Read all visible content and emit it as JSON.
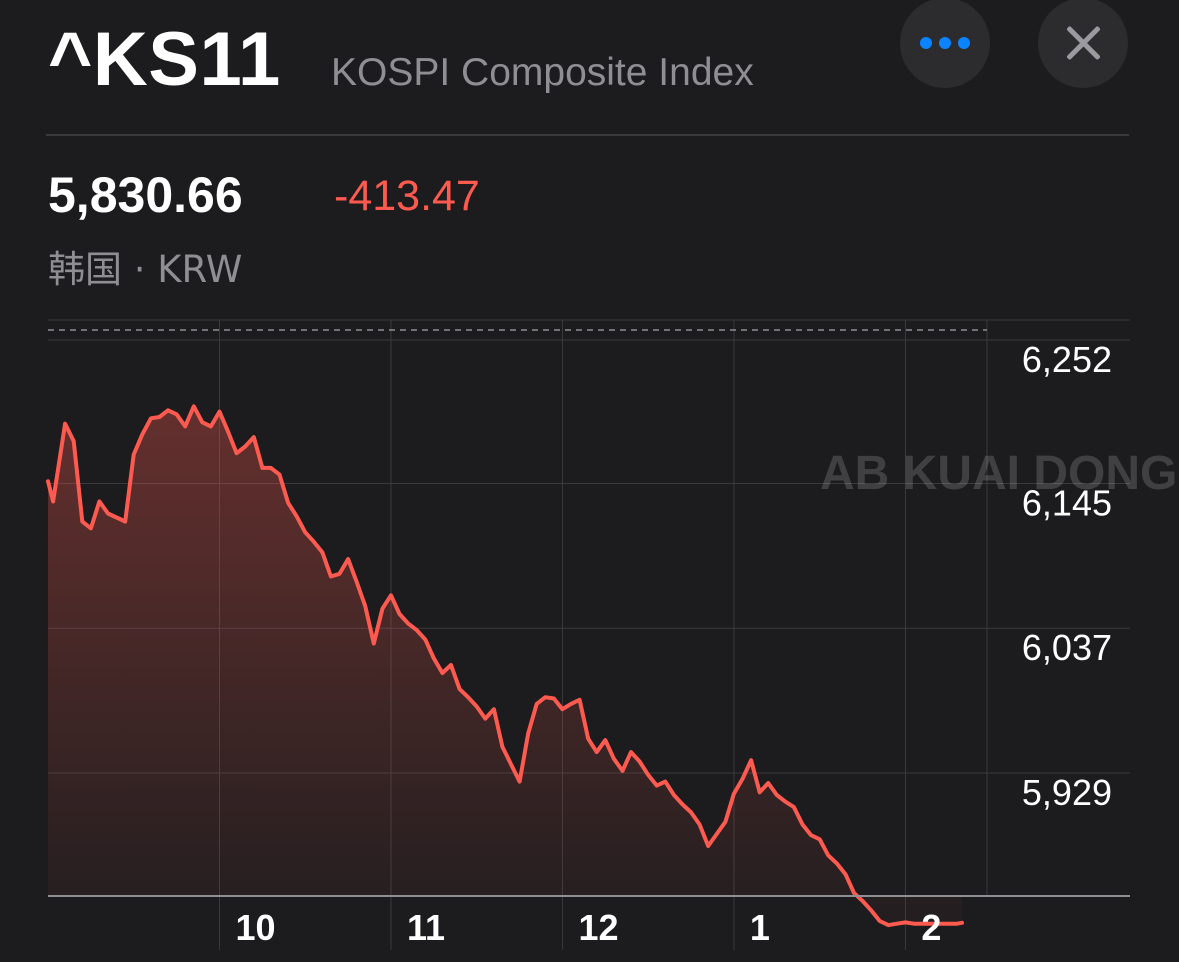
{
  "header": {
    "symbol": "^KS11",
    "company": "KOSPI Composite Index",
    "more_icon": "ellipsis-icon",
    "close_icon": "close-icon"
  },
  "quote": {
    "price": "5,830.66",
    "change": "-413.47",
    "meta": "韩国 · KRW"
  },
  "colors": {
    "background": "#1c1c1e",
    "line": "#ff5a4f",
    "change_negative": "#ff5a4f",
    "accent_blue": "#0a84ff",
    "secondary_text": "#8e8e93"
  },
  "watermark": "AB KUAI DONG",
  "chart_data": {
    "type": "area",
    "y_tick_labels": [
      "6,252",
      "6,145",
      "6,037",
      "5,929"
    ],
    "y_ticks": [
      6252,
      6145,
      6037,
      5929
    ],
    "x_tick_labels": [
      "10",
      "11",
      "12",
      "1",
      "2"
    ],
    "x_ticks": [
      1,
      2,
      3,
      4,
      5
    ],
    "ylim": [
      5820,
      6252
    ],
    "xlim": [
      0,
      5.33
    ],
    "previous_close": 6244.13,
    "grid": true,
    "series": [
      {
        "x": [
          0,
          0.03,
          0.1,
          0.15,
          0.2,
          0.25,
          0.3,
          0.35,
          0.4,
          0.45,
          0.5,
          0.55,
          0.6,
          0.65,
          0.7,
          0.75,
          0.8,
          0.85,
          0.9,
          0.95,
          1.0,
          1.05,
          1.1,
          1.15,
          1.2,
          1.25,
          1.3,
          1.35,
          1.4,
          1.45,
          1.5,
          1.55,
          1.6,
          1.65,
          1.7,
          1.75,
          1.8,
          1.85,
          1.9,
          1.95,
          2.0,
          2.05,
          2.1,
          2.15,
          2.2,
          2.25,
          2.3,
          2.35,
          2.4,
          2.45,
          2.5,
          2.55,
          2.6,
          2.65,
          2.7,
          2.75,
          2.8,
          2.85,
          2.9,
          2.95,
          3.0,
          3.05,
          3.1,
          3.15,
          3.2,
          3.25,
          3.3,
          3.35,
          3.4,
          3.45,
          3.5,
          3.55,
          3.6,
          3.65,
          3.7,
          3.75,
          3.8,
          3.85,
          3.9,
          3.95,
          4.0,
          4.05,
          4.1,
          4.15,
          4.2,
          4.25,
          4.3,
          4.35,
          4.4,
          4.45,
          4.5,
          4.55,
          4.6,
          4.65,
          4.7,
          4.75,
          4.8,
          4.85,
          4.9,
          4.95,
          5.0,
          5.05,
          5.1,
          5.15,
          5.2,
          5.25,
          5.3,
          5.33
        ],
        "y": [
          6160,
          6145,
          6203,
          6190,
          6130,
          6125,
          6145,
          6136,
          6133,
          6130,
          6180,
          6195,
          6207,
          6208,
          6213,
          6210,
          6201,
          6216,
          6204,
          6201,
          6212,
          6197,
          6181,
          6186,
          6193,
          6170,
          6170,
          6165,
          6144,
          6134,
          6122,
          6115,
          6107,
          6089,
          6091,
          6102,
          6085,
          6067,
          6039,
          6065,
          6075,
          6061,
          6054,
          6049,
          6042,
          6028,
          6017,
          6023,
          6005,
          5999,
          5992,
          5983,
          5990,
          5962,
          5949,
          5936,
          5972,
          5994,
          5999,
          5998,
          5990,
          5994,
          5997,
          5968,
          5958,
          5967,
          5953,
          5944,
          5958,
          5951,
          5941,
          5933,
          5936,
          5926,
          5919,
          5913,
          5904,
          5888,
          5897,
          5906,
          5927,
          5938,
          5952,
          5928,
          5935,
          5926,
          5921,
          5917,
          5904,
          5896,
          5893,
          5881,
          5875,
          5867,
          5853,
          5847,
          5840,
          5832,
          5829,
          5830,
          5831,
          5830,
          5830,
          5830,
          5830,
          5830,
          5830,
          5830.66
        ]
      }
    ]
  }
}
